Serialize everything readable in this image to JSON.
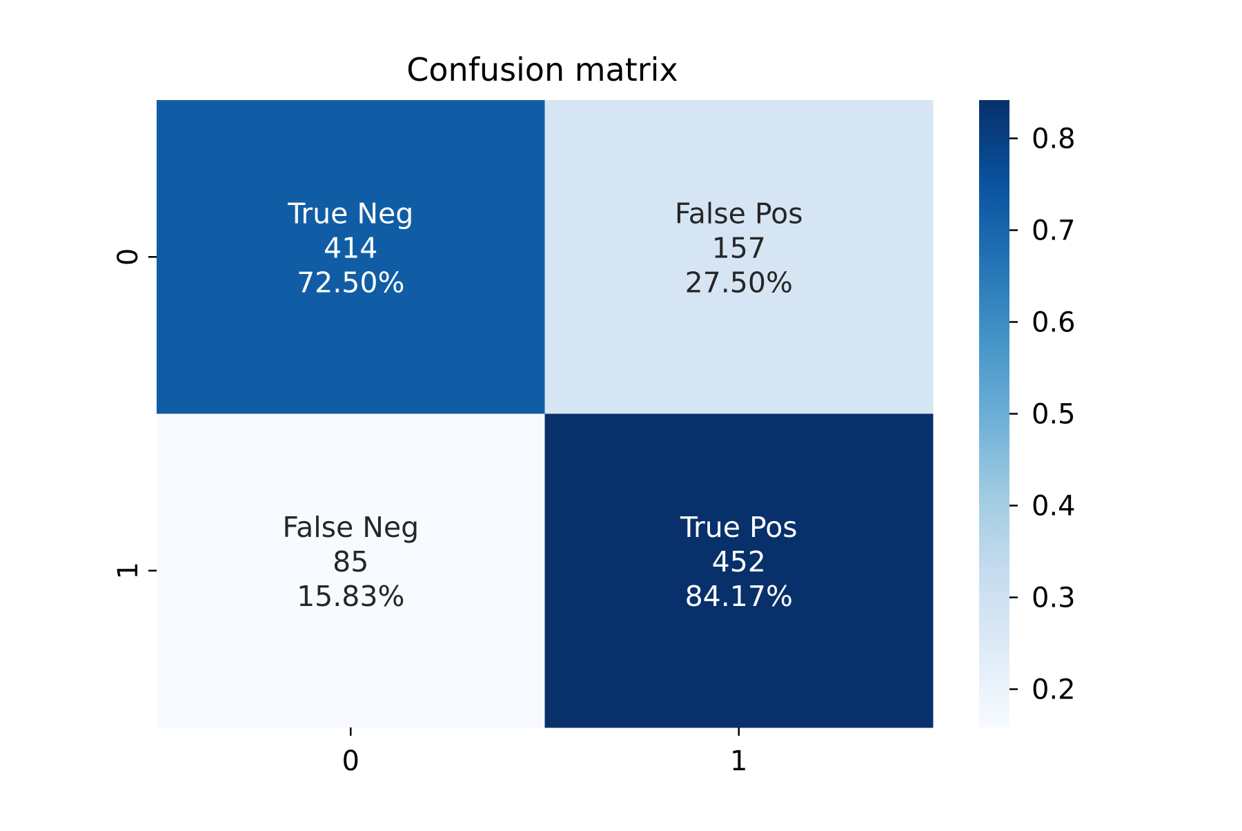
{
  "chart_data": {
    "type": "heatmap",
    "title": "Confusion matrix",
    "xlabel": "",
    "ylabel": "",
    "x_categories": [
      "0",
      "1"
    ],
    "y_categories": [
      "0",
      "1"
    ],
    "values": [
      [
        0.725,
        0.275
      ],
      [
        0.1583,
        0.8417
      ]
    ],
    "cells": [
      [
        {
          "label": "True Neg",
          "count": "414",
          "percent": "72.50%"
        },
        {
          "label": "False Pos",
          "count": "157",
          "percent": "27.50%"
        }
      ],
      [
        {
          "label": "False Neg",
          "count": "85",
          "percent": "15.83%"
        },
        {
          "label": "True Pos",
          "count": "452",
          "percent": "84.17%"
        }
      ]
    ],
    "colormap": "Blues",
    "colorbar": {
      "range": [
        0.1583,
        0.8417
      ],
      "ticks": [
        "0.2",
        "0.3",
        "0.4",
        "0.5",
        "0.6",
        "0.7",
        "0.8"
      ],
      "tick_values": [
        0.2,
        0.3,
        0.4,
        0.5,
        0.6,
        0.7,
        0.8
      ]
    },
    "grid": false,
    "legend": "none"
  }
}
